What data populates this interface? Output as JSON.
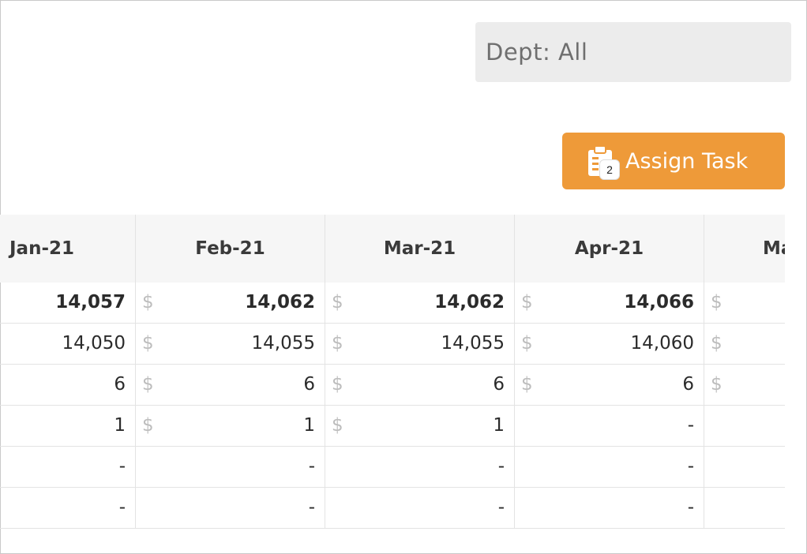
{
  "filter": {
    "dept_label": "Dept: All"
  },
  "actions": {
    "assign_task_label": "Assign Task",
    "task_badge": "2"
  },
  "table": {
    "columns": [
      "Jan-21",
      "Feb-21",
      "Mar-21",
      "Apr-21",
      "Ma"
    ],
    "currency_symbol": "$",
    "rows": [
      {
        "bold": true,
        "cells": [
          "14,057",
          "14,062",
          "14,062",
          "14,066",
          ""
        ],
        "currency": [
          false,
          true,
          true,
          true,
          true
        ]
      },
      {
        "bold": false,
        "cells": [
          "14,050",
          "14,055",
          "14,055",
          "14,060",
          ""
        ],
        "currency": [
          false,
          true,
          true,
          true,
          true
        ]
      },
      {
        "bold": false,
        "cells": [
          "6",
          "6",
          "6",
          "6",
          ""
        ],
        "currency": [
          false,
          true,
          true,
          true,
          true
        ]
      },
      {
        "bold": false,
        "cells": [
          "1",
          "1",
          "1",
          "-",
          ""
        ],
        "currency": [
          false,
          true,
          true,
          false,
          false
        ]
      },
      {
        "bold": false,
        "cells": [
          "-",
          "-",
          "-",
          "-",
          ""
        ],
        "currency": [
          false,
          false,
          false,
          false,
          false
        ]
      },
      {
        "bold": false,
        "cells": [
          "-",
          "-",
          "-",
          "-",
          ""
        ],
        "currency": [
          false,
          false,
          false,
          false,
          false
        ]
      }
    ]
  },
  "colors": {
    "accent": "#ee9a39",
    "currency": "#bdbdbd",
    "header_bg": "#f6f6f6"
  }
}
